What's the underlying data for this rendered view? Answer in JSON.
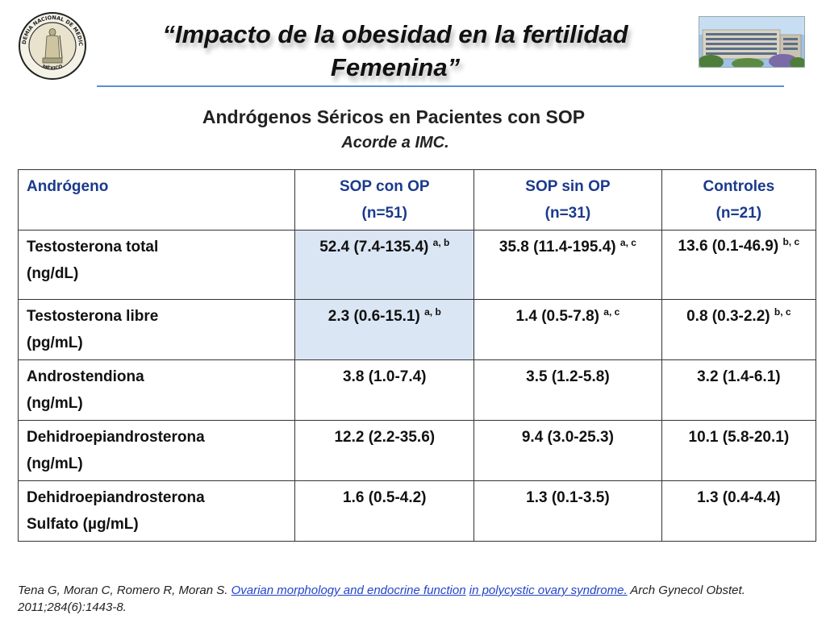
{
  "header": {
    "title_line1": "“Impacto de la obesidad en la fertilidad",
    "title_line2": "Femenina”",
    "logo_name": "academy-seal-logo",
    "logo_text_top": "ACADEMIA NACIONAL DE MEDICINA",
    "logo_text_bottom": "MÉXICO",
    "photo_name": "hospital-building-photo"
  },
  "subtitle": "Andrógenos Séricos en Pacientes con  SOP",
  "subtitle2": "Acorde a IMC.",
  "table": {
    "headers": [
      {
        "line1": "Andrógeno",
        "line2": ""
      },
      {
        "line1": "SOP con OP",
        "line2": "(n=51)"
      },
      {
        "line1": "SOP sin OP",
        "line2": "(n=31)"
      },
      {
        "line1": "Controles",
        "line2": "(n=21)"
      }
    ],
    "rows": [
      {
        "name1": "Testosterona total",
        "name2": "(ng/dL)",
        "cells": [
          {
            "value": "52.4 (7.4-135.4)",
            "sup": "a, b"
          },
          {
            "value": "35.8 (11.4-195.4)",
            "sup": "a, c"
          },
          {
            "value": "13.6 (0.1-46.9)",
            "sup": "b, c"
          }
        ]
      },
      {
        "name1": "Testosterona libre",
        "name2": "(pg/mL)",
        "cells": [
          {
            "value": "2.3 (0.6-15.1)",
            "sup": "a, b"
          },
          {
            "value": "1.4 (0.5-7.8)",
            "sup": "a, c"
          },
          {
            "value": "0.8 (0.3-2.2)",
            "sup": "b, c"
          }
        ]
      },
      {
        "name1": "Androstendiona",
        "name2": "(ng/mL)",
        "cells": [
          {
            "value": "3.8 (1.0-7.4)",
            "sup": ""
          },
          {
            "value": "3.5 (1.2-5.8)",
            "sup": ""
          },
          {
            "value": "3.2 (1.4-6.1)",
            "sup": ""
          }
        ]
      },
      {
        "name1": "Dehidroepiandrosterona",
        "name2": "(ng/mL)",
        "cells": [
          {
            "value": "12.2 (2.2-35.6)",
            "sup": ""
          },
          {
            "value": "9.4 (3.0-25.3)",
            "sup": ""
          },
          {
            "value": "10.1 (5.8-20.1)",
            "sup": ""
          }
        ]
      },
      {
        "name1": "Dehidroepiandrosterona",
        "name2": "Sulfato (µg/mL)",
        "cells": [
          {
            "value": "1.6 (0.5-4.2)",
            "sup": ""
          },
          {
            "value": "1.3 (0.1-3.5)",
            "sup": ""
          },
          {
            "value": "1.3 (0.4-4.4)",
            "sup": ""
          }
        ]
      }
    ]
  },
  "citation": {
    "authors": "Tena G, Moran C, Romero R, Moran S.",
    "link1": "Ovarian morphology and endocrine function",
    "link2": " in polycystic ovary syndrome.",
    "rest": "Arch Gynecol Obstet. 2011;284(6):1443-8."
  },
  "colors": {
    "header_text": "#1a3a8c",
    "highlight": "#dbe6f4",
    "rule": "#5b8fd6",
    "link": "#2244cc"
  }
}
